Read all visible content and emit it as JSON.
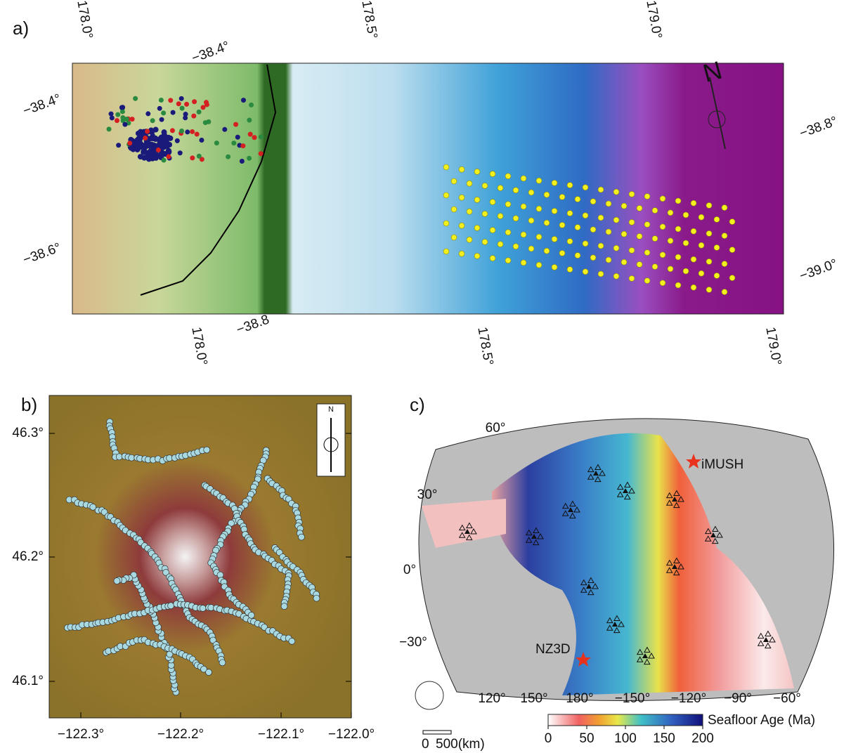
{
  "panel_a": {
    "label": "a)",
    "top_ticks": [
      "178.0°",
      "−38.4°",
      "178.5°",
      "179.0°"
    ],
    "left_ticks": [
      "−38.4°",
      "−38.6°"
    ],
    "right_ticks": [
      "−38.8°",
      "−39.0°"
    ],
    "bottom_ticks": [
      "178.0°",
      "−38.8",
      "178.5°",
      "179.0°"
    ],
    "compass": "N"
  },
  "panel_b": {
    "label": "b)",
    "y_ticks": [
      "46.3°",
      "46.2°",
      "46.1°"
    ],
    "x_ticks": [
      "−122.3°",
      "−122.2°",
      "−122.1°",
      "−122.0°"
    ],
    "compass": "N"
  },
  "panel_c": {
    "label": "c)",
    "lat_ticks": [
      "60°",
      "30°",
      "0°",
      "−30°"
    ],
    "lon_ticks": [
      "120°",
      "150°",
      "180°",
      "−150°",
      "−120°",
      "−90°",
      "−60°"
    ],
    "sites": [
      "iMUSH",
      "NZ3D"
    ],
    "colorbar": {
      "label": "Seafloor Age (Ma)",
      "range": [
        0,
        200
      ],
      "ticks": [
        0,
        50,
        100,
        150,
        200
      ]
    },
    "scale_bar": [
      "0",
      "500(km)"
    ]
  }
}
